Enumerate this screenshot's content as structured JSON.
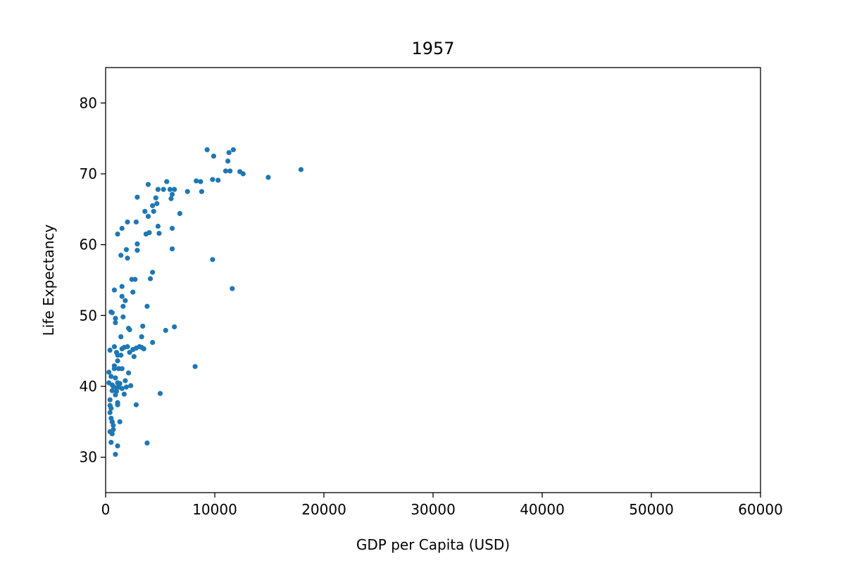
{
  "chart_data": {
    "type": "scatter",
    "title": "1957",
    "xlabel": "GDP per Capita (USD)",
    "ylabel": "Life Expectancy",
    "xlim": [
      0,
      60000
    ],
    "ylim": [
      25,
      85
    ],
    "xticks": [
      0,
      10000,
      20000,
      30000,
      40000,
      50000,
      60000
    ],
    "yticks": [
      30,
      40,
      50,
      60,
      70,
      80
    ],
    "grid": false,
    "marker_color": "#1f77b4",
    "series": [
      {
        "points": [
          [
            9300,
            73.4
          ],
          [
            11700,
            73.4
          ],
          [
            9900,
            72.5
          ],
          [
            11300,
            73.0
          ],
          [
            11200,
            71.8
          ],
          [
            11000,
            70.4
          ],
          [
            11400,
            70.4
          ],
          [
            12300,
            70.3
          ],
          [
            12600,
            70.0
          ],
          [
            17900,
            70.6
          ],
          [
            14900,
            69.5
          ],
          [
            9800,
            69.2
          ],
          [
            10300,
            69.1
          ],
          [
            8300,
            69.0
          ],
          [
            8700,
            68.9
          ],
          [
            5600,
            68.9
          ],
          [
            3900,
            68.5
          ],
          [
            4800,
            67.8
          ],
          [
            5300,
            67.8
          ],
          [
            5900,
            67.8
          ],
          [
            6300,
            67.8
          ],
          [
            7500,
            67.5
          ],
          [
            8800,
            67.5
          ],
          [
            6100,
            67.1
          ],
          [
            6000,
            66.5
          ],
          [
            2900,
            66.7
          ],
          [
            4600,
            66.6
          ],
          [
            4300,
            65.5
          ],
          [
            4700,
            65.8
          ],
          [
            4400,
            64.7
          ],
          [
            3600,
            64.7
          ],
          [
            3900,
            64.0
          ],
          [
            6800,
            64.4
          ],
          [
            2000,
            63.2
          ],
          [
            2800,
            63.2
          ],
          [
            1500,
            62.3
          ],
          [
            4800,
            62.6
          ],
          [
            6100,
            62.3
          ],
          [
            1100,
            61.5
          ],
          [
            3700,
            61.5
          ],
          [
            4000,
            61.7
          ],
          [
            4900,
            61.6
          ],
          [
            2900,
            60.1
          ],
          [
            1900,
            59.3
          ],
          [
            2900,
            59.2
          ],
          [
            6100,
            59.4
          ],
          [
            1400,
            58.5
          ],
          [
            2000,
            58.1
          ],
          [
            9800,
            57.9
          ],
          [
            4300,
            56.1
          ],
          [
            4100,
            55.2
          ],
          [
            2400,
            55.1
          ],
          [
            2700,
            55.1
          ],
          [
            1500,
            54.1
          ],
          [
            800,
            53.6
          ],
          [
            2500,
            53.3
          ],
          [
            11600,
            53.8
          ],
          [
            1500,
            52.7
          ],
          [
            1800,
            52.1
          ],
          [
            1600,
            51.3
          ],
          [
            3800,
            51.3
          ],
          [
            500,
            50.5
          ],
          [
            600,
            50.4
          ],
          [
            900,
            49.6
          ],
          [
            1600,
            49.8
          ],
          [
            900,
            49.0
          ],
          [
            3400,
            48.5
          ],
          [
            6300,
            48.4
          ],
          [
            2100,
            48.2
          ],
          [
            2200,
            48.0
          ],
          [
            5500,
            47.9
          ],
          [
            1400,
            47.0
          ],
          [
            3300,
            47.0
          ],
          [
            4300,
            46.2
          ],
          [
            800,
            45.6
          ],
          [
            1700,
            45.5
          ],
          [
            2000,
            45.6
          ],
          [
            3100,
            45.6
          ],
          [
            1500,
            45.3
          ],
          [
            3300,
            45.5
          ],
          [
            3500,
            45.3
          ],
          [
            400,
            45.1
          ],
          [
            2500,
            45.2
          ],
          [
            2800,
            45.4
          ],
          [
            1000,
            44.8
          ],
          [
            2200,
            44.8
          ],
          [
            1100,
            44.4
          ],
          [
            1400,
            44.4
          ],
          [
            2600,
            44.2
          ],
          [
            800,
            42.9
          ],
          [
            8200,
            42.8
          ],
          [
            1100,
            43.6
          ],
          [
            800,
            42.5
          ],
          [
            1200,
            42.5
          ],
          [
            1500,
            42.5
          ],
          [
            300,
            42.0
          ],
          [
            2100,
            41.9
          ],
          [
            500,
            41.4
          ],
          [
            900,
            41.2
          ],
          [
            1100,
            40.5
          ],
          [
            300,
            40.5
          ],
          [
            600,
            40.2
          ],
          [
            1300,
            40.4
          ],
          [
            1800,
            40.8
          ],
          [
            2300,
            40.1
          ],
          [
            700,
            40.0
          ],
          [
            1000,
            39.8
          ],
          [
            1200,
            39.9
          ],
          [
            1500,
            39.7
          ],
          [
            1900,
            39.9
          ],
          [
            600,
            39.4
          ],
          [
            1000,
            39.3
          ],
          [
            1700,
            38.9
          ],
          [
            5000,
            39.0
          ],
          [
            900,
            38.8
          ],
          [
            400,
            38.1
          ],
          [
            1100,
            37.7
          ],
          [
            1100,
            37.4
          ],
          [
            2800,
            37.4
          ],
          [
            400,
            37.3
          ],
          [
            500,
            36.9
          ],
          [
            400,
            36.3
          ],
          [
            500,
            35.5
          ],
          [
            600,
            35.0
          ],
          [
            1300,
            35.0
          ],
          [
            700,
            34.5
          ],
          [
            700,
            33.9
          ],
          [
            400,
            33.6
          ],
          [
            600,
            33.3
          ],
          [
            500,
            32.1
          ],
          [
            3800,
            32.0
          ],
          [
            1100,
            31.6
          ],
          [
            900,
            30.4
          ]
        ]
      }
    ]
  }
}
